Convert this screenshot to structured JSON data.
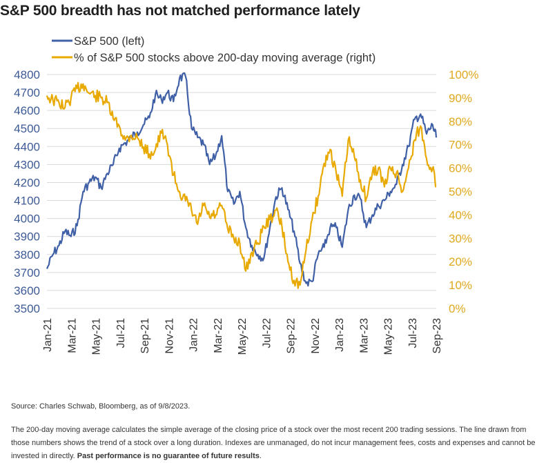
{
  "title": "S&P 500 breadth has not matched performance lately",
  "source": "Source: Charles Schwab, Bloomberg, as of 9/8/2023.",
  "disclaimer": "The 200-day moving average calculates the simple average of the closing price of a stock over the most recent 200 trading sessions. The line drawn from those numbers shows the trend of a stock over a long duration. Indexes are unmanaged, do not incur management fees, costs and expenses and cannot be invested in directly.",
  "disclaimer_bold": "Past performance is no guarantee of future results",
  "disclaimer_end": ".",
  "colors": {
    "sp500": "#3f5fa6",
    "breadth": "#e8a900",
    "grid": "#d9d9d9"
  },
  "chart_data": {
    "type": "line",
    "legend": [
      "S&P 500 (left)",
      "% of S&P 500 stocks above 200-day moving average (right)"
    ],
    "legend_position": "top-left",
    "grid": true,
    "x_tick_labels": [
      "Jan-21",
      "Mar-21",
      "May-21",
      "Jul-21",
      "Sep-21",
      "Nov-21",
      "Jan-22",
      "Mar-22",
      "May-22",
      "Jul-22",
      "Sep-22",
      "Nov-22",
      "Jan-23",
      "Mar-23",
      "May-23",
      "Jul-23",
      "Sep-23"
    ],
    "x_range": [
      "Jan-21",
      "Sep-23"
    ],
    "y_left": {
      "min": 3500,
      "max": 4800,
      "step": 100,
      "ticks": [
        "3500",
        "3600",
        "3700",
        "3800",
        "3900",
        "4000",
        "4100",
        "4200",
        "4300",
        "4400",
        "4500",
        "4600",
        "4700",
        "4800"
      ]
    },
    "y_right": {
      "min": 0,
      "max": 100,
      "step": 10,
      "ticks": [
        "0%",
        "10%",
        "20%",
        "30%",
        "40%",
        "50%",
        "60%",
        "70%",
        "80%",
        "90%",
        "100%"
      ]
    },
    "x": [
      0,
      0.5,
      1,
      1.5,
      2,
      2.5,
      3,
      3.5,
      4,
      4.5,
      5,
      5.5,
      6,
      6.5,
      7,
      7.5,
      8,
      8.5,
      9,
      9.5,
      10,
      10.5,
      11,
      11.5,
      12,
      12.5,
      13,
      13.5,
      14,
      14.5,
      15,
      15.5,
      16,
      16.5,
      17,
      17.5,
      18,
      18.5,
      19,
      19.5,
      20,
      20.5,
      21,
      21.5,
      22,
      22.5,
      23,
      23.5,
      24,
      24.5,
      25,
      25.5,
      26,
      26.5,
      27,
      27.5,
      28,
      28.5,
      29,
      29.5,
      30,
      30.5,
      31,
      31.5,
      32,
      32.3
    ],
    "series": [
      {
        "name": "S&P 500 (left)",
        "axis": "left",
        "values": [
          3720,
          3800,
          3850,
          3930,
          3900,
          3960,
          4150,
          4200,
          4230,
          4170,
          4250,
          4300,
          4390,
          4420,
          4450,
          4480,
          4520,
          4560,
          4690,
          4660,
          4700,
          4650,
          4780,
          4790,
          4500,
          4450,
          4410,
          4300,
          4350,
          4460,
          4150,
          4080,
          4150,
          3950,
          3850,
          3800,
          3780,
          3950,
          4120,
          4170,
          4050,
          3930,
          3750,
          3640,
          3650,
          3800,
          3840,
          3950,
          3950,
          3840,
          4050,
          4130,
          4110,
          3950,
          4020,
          4070,
          4100,
          4150,
          4190,
          4300,
          4400,
          4550,
          4580,
          4470,
          4520,
          4450
        ]
      },
      {
        "name": "% of S&P 500 stocks above 200-day moving average (right)",
        "axis": "right",
        "values": [
          91,
          89,
          88,
          86,
          90,
          94,
          96,
          92,
          91,
          90,
          88,
          81,
          78,
          72,
          74,
          73,
          69,
          66,
          68,
          75,
          70,
          57,
          50,
          46,
          42,
          36,
          44,
          39,
          40,
          44,
          34,
          30,
          28,
          16,
          24,
          28,
          35,
          38,
          42,
          35,
          20,
          12,
          10,
          25,
          38,
          48,
          62,
          68,
          58,
          48,
          72,
          65,
          55,
          47,
          58,
          60,
          52,
          60,
          58,
          50,
          60,
          72,
          78,
          64,
          60,
          52
        ]
      }
    ]
  }
}
